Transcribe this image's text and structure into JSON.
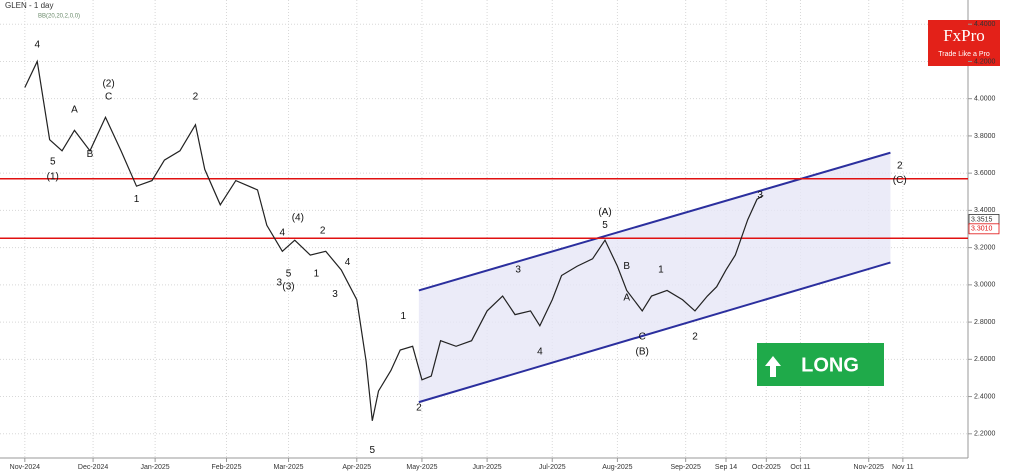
{
  "chart_data": {
    "type": "line",
    "title": "GLEN - 1 day",
    "subtitle": "BB(20,20,2,0,0)",
    "series": [
      {
        "name": "GLEN",
        "color": "#222222",
        "x": [
          0,
          4,
          8,
          12,
          16,
          21,
          26,
          31,
          36,
          41,
          45,
          50,
          55,
          58,
          63,
          68,
          75,
          78,
          83,
          87,
          92,
          97,
          102,
          107,
          110,
          112,
          114,
          118,
          121,
          125,
          128,
          131,
          134,
          139,
          144,
          149,
          154,
          158,
          163,
          166,
          170,
          173,
          178,
          183,
          187,
          191,
          194,
          199,
          202,
          207,
          212,
          216,
          220,
          223,
          226,
          229,
          233,
          236,
          238
        ],
        "values": [
          4.06,
          4.2,
          3.78,
          3.72,
          3.83,
          3.72,
          3.9,
          3.72,
          3.53,
          3.56,
          3.67,
          3.72,
          3.86,
          3.62,
          3.43,
          3.56,
          3.51,
          3.32,
          3.18,
          3.24,
          3.16,
          3.18,
          3.08,
          2.92,
          2.59,
          2.27,
          2.43,
          2.54,
          2.65,
          2.67,
          2.49,
          2.51,
          2.7,
          2.67,
          2.7,
          2.86,
          2.94,
          2.84,
          2.86,
          2.78,
          2.92,
          3.05,
          3.1,
          3.14,
          3.24,
          3.1,
          2.97,
          2.86,
          2.94,
          2.97,
          2.92,
          2.86,
          2.94,
          2.99,
          3.08,
          3.16,
          3.35,
          3.46,
          3.48
        ]
      }
    ],
    "xlim": [
      -8,
      304
    ],
    "ylim": [
      2.07,
      4.53
    ],
    "xticks": [
      {
        "value": 0,
        "label": "Nov-2024"
      },
      {
        "value": 22,
        "label": "Dec-2024"
      },
      {
        "value": 42,
        "label": "Jan-2025"
      },
      {
        "value": 65,
        "label": "Feb-2025"
      },
      {
        "value": 85,
        "label": "Mar-2025"
      },
      {
        "value": 107,
        "label": "Apr-2025"
      },
      {
        "value": 128,
        "label": "May-2025"
      },
      {
        "value": 149,
        "label": "Jun-2025"
      },
      {
        "value": 170,
        "label": "Jul-2025"
      },
      {
        "value": 191,
        "label": "Aug-2025"
      },
      {
        "value": 213,
        "label": "Sep-2025"
      },
      {
        "value": 226,
        "label": "Sep 14"
      },
      {
        "value": 239,
        "label": "Oct-2025"
      },
      {
        "value": 250,
        "label": "Oct 11"
      },
      {
        "value": 272,
        "label": "Nov-2025"
      },
      {
        "value": 283,
        "label": "Nov 11"
      }
    ],
    "yticks": [
      {
        "value": 2.2,
        "label": "2.2000"
      },
      {
        "value": 2.4,
        "label": "2.4000"
      },
      {
        "value": 2.6,
        "label": "2.6000"
      },
      {
        "value": 2.8,
        "label": "2.8000"
      },
      {
        "value": 3.0,
        "label": "3.0000"
      },
      {
        "value": 3.2,
        "label": "3.2000"
      },
      {
        "value": 3.4,
        "label": "3.4000"
      },
      {
        "value": 3.6,
        "label": "3.6000"
      },
      {
        "value": 3.8,
        "label": "3.8000"
      },
      {
        "value": 4.0,
        "label": "4.0000"
      },
      {
        "value": 4.2,
        "label": "4.2000"
      },
      {
        "value": 4.4,
        "label": "4.4000"
      }
    ],
    "grid": true,
    "hlines": [
      {
        "value": 3.57,
        "color": "#e01010"
      },
      {
        "value": 3.25,
        "color": "#e01010"
      }
    ],
    "channel": {
      "x": [
        127,
        279
      ],
      "upper": [
        2.97,
        3.71
      ],
      "lower": [
        2.37,
        3.12
      ],
      "color": "#2b2f9e"
    },
    "price_labels": [
      {
        "value": 3.3515,
        "label": "3.3515",
        "color": "#333333"
      },
      {
        "value": 3.301,
        "label": "3.3010",
        "color": "#e01010"
      }
    ],
    "annotations": [
      {
        "text": "4",
        "x": 4,
        "y": 4.29
      },
      {
        "text": "5",
        "x": 9,
        "y": 3.66
      },
      {
        "text": "(1)",
        "x": 9,
        "y": 3.58
      },
      {
        "text": "A",
        "x": 16,
        "y": 3.94
      },
      {
        "text": "B",
        "x": 21,
        "y": 3.7
      },
      {
        "text": "(2)",
        "x": 27,
        "y": 4.08
      },
      {
        "text": "C",
        "x": 27,
        "y": 4.01
      },
      {
        "text": "1",
        "x": 36,
        "y": 3.46
      },
      {
        "text": "2",
        "x": 55,
        "y": 4.01
      },
      {
        "text": "(4)",
        "x": 88,
        "y": 3.36
      },
      {
        "text": "2",
        "x": 96,
        "y": 3.29
      },
      {
        "text": "4",
        "x": 83,
        "y": 3.28
      },
      {
        "text": "5",
        "x": 85,
        "y": 3.06
      },
      {
        "text": "3",
        "x": 82,
        "y": 3.01
      },
      {
        "text": "(3)",
        "x": 85,
        "y": 2.99
      },
      {
        "text": "1",
        "x": 94,
        "y": 3.06
      },
      {
        "text": "4",
        "x": 104,
        "y": 3.12
      },
      {
        "text": "3",
        "x": 100,
        "y": 2.95
      },
      {
        "text": "1",
        "x": 122,
        "y": 2.83
      },
      {
        "text": "2",
        "x": 127,
        "y": 2.34
      },
      {
        "text": "5",
        "x": 112,
        "y": 2.11
      },
      {
        "text": "3",
        "x": 159,
        "y": 3.08
      },
      {
        "text": "4",
        "x": 166,
        "y": 2.64
      },
      {
        "text": "(A)",
        "x": 187,
        "y": 3.39
      },
      {
        "text": "5",
        "x": 187,
        "y": 3.32
      },
      {
        "text": "B",
        "x": 194,
        "y": 3.1
      },
      {
        "text": "A",
        "x": 194,
        "y": 2.93
      },
      {
        "text": "1",
        "x": 205,
        "y": 3.08
      },
      {
        "text": "C",
        "x": 199,
        "y": 2.72
      },
      {
        "text": "(B)",
        "x": 199,
        "y": 2.64
      },
      {
        "text": "2",
        "x": 216,
        "y": 2.72
      },
      {
        "text": "3",
        "x": 237,
        "y": 3.48
      },
      {
        "text": "2",
        "x": 282,
        "y": 3.64
      },
      {
        "text": "(C)",
        "x": 282,
        "y": 3.56
      }
    ]
  },
  "logo": {
    "name": "FxPro",
    "tagline": "Trade Like a Pro"
  },
  "signal": "LONG"
}
